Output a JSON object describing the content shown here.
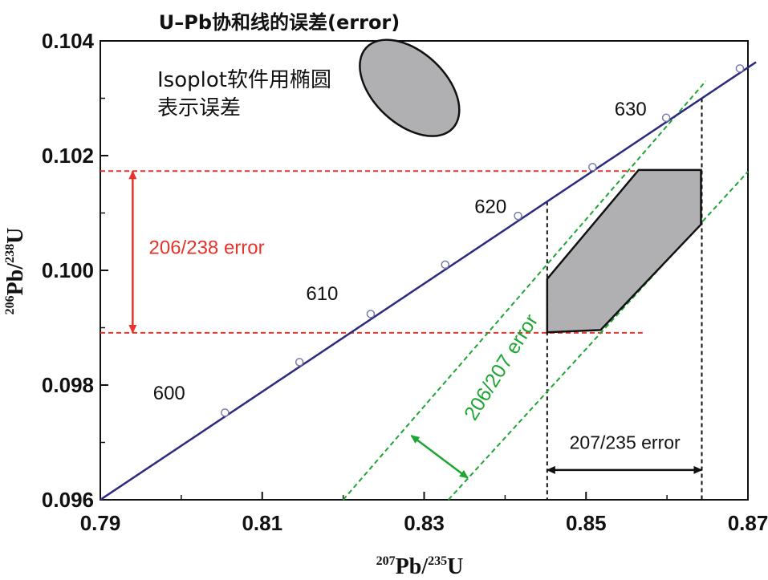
{
  "chart_data": {
    "type": "line",
    "title": "U–Pb协和线的误差(error)",
    "xlabel": {
      "sup1": "207",
      "main1": "Pb/",
      "sup2": "235",
      "main2": "U"
    },
    "ylabel": {
      "sup1": "206",
      "main1": "Pb/",
      "sup2": "238",
      "main2": "U"
    },
    "xlim": [
      0.79,
      0.87
    ],
    "ylim": [
      0.096,
      0.104
    ],
    "x_ticks": [
      "0.79",
      "0.81",
      "0.83",
      "0.85",
      "0.87"
    ],
    "y_ticks": [
      "0.096",
      "0.098",
      "0.100",
      "0.102",
      "0.104"
    ],
    "concordia": {
      "line_color": "#2b2a7e",
      "start": [
        0.79,
        0.096
      ],
      "end": [
        0.871,
        0.10363
      ],
      "markers": [
        {
          "x": 0.8054,
          "y": 0.09752
        },
        {
          "x": 0.8146,
          "y": 0.0984
        },
        {
          "x": 0.8234,
          "y": 0.09924
        },
        {
          "x": 0.8326,
          "y": 0.1001
        },
        {
          "x": 0.8416,
          "y": 0.10095
        },
        {
          "x": 0.8508,
          "y": 0.1018
        },
        {
          "x": 0.8599,
          "y": 0.10266
        },
        {
          "x": 0.869,
          "y": 0.10352
        }
      ],
      "age_labels": [
        {
          "text": "600",
          "x": 0.7985,
          "y": 0.09775
        },
        {
          "text": "610",
          "x": 0.8174,
          "y": 0.09948
        },
        {
          "text": "620",
          "x": 0.8382,
          "y": 0.101
        },
        {
          "text": "630",
          "x": 0.8555,
          "y": 0.1027
        }
      ]
    },
    "ellipse": {
      "label_line1": "Isoplot软件用椭圆",
      "label_line2": "表示误差",
      "fill": "#b0b0b2",
      "center": [
        0.8282,
        0.10318
      ],
      "rx": 0.00445,
      "ry": 0.00103,
      "rotation_deg": -47
    },
    "error_box": {
      "fill": "#b0b0b2",
      "vertices": [
        [
          0.8452,
          0.09892
        ],
        [
          0.8452,
          0.09985
        ],
        [
          0.8565,
          0.10175
        ],
        [
          0.8642,
          0.10175
        ],
        [
          0.8642,
          0.1008
        ],
        [
          0.8518,
          0.09896
        ]
      ]
    },
    "err_206_238": {
      "label": "206/238 error",
      "color": "#e8332a",
      "y_low": 0.09891,
      "y_high": 0.10173,
      "arrow_x": 0.794,
      "label_x": 0.796,
      "label_y": 0.1004
    },
    "err_207_235": {
      "label": "207/235 error",
      "color": "#111111",
      "x_low": 0.8452,
      "x_high": 0.8643,
      "arrow_y": 0.09652,
      "label_y": 0.097,
      "label_x": 0.8548
    },
    "err_206_207": {
      "label": "206/207 error",
      "color": "#1ea534",
      "line1": [
        [
          0.82,
          0.096
        ],
        [
          0.8648,
          0.1033
        ]
      ],
      "line2": [
        [
          0.833,
          0.096
        ],
        [
          0.87,
          0.10172
        ]
      ],
      "arrow_from": [
        0.8284,
        0.09712
      ],
      "arrow_to": [
        0.8354,
        0.09638
      ],
      "label_x": 0.8402,
      "label_y": 0.09825
    }
  }
}
